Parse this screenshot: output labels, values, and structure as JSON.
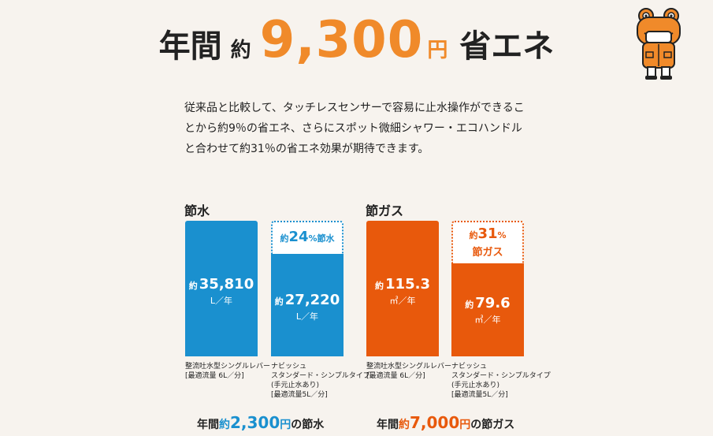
{
  "headline": {
    "prefix": "年間",
    "approx": "約",
    "amount": "9,300",
    "yen": "円",
    "suffix": "省エネ"
  },
  "description": "従来品と比較して、タッチレスセンサーで容易に止水操作ができることから約9％の省エネ、さらにスポット微細シャワー・エコハンドルと合わせて約31％の省エネ効果が期待できます。",
  "water": {
    "title": "節水",
    "before": {
      "approx": "約",
      "value": "35,810",
      "unit": "L／年",
      "caption": [
        "整流吐水型シングルレバー",
        "[最適流量 6L／分]"
      ]
    },
    "after": {
      "approx": "約",
      "value": "27,220",
      "unit": "L／年",
      "caption": [
        "ナビッシュ",
        "スタンダード・シンプルタイプ",
        "(手元止水あり)",
        "[最適流量5L／分]"
      ]
    },
    "badge": {
      "approx": "約",
      "pct": "24",
      "pct_sign": "%",
      "label": "節水"
    },
    "summary": {
      "prefix": "年間",
      "approx": "約",
      "amount": "2,300",
      "yen": "円",
      "suffix": "の節水"
    }
  },
  "gas": {
    "title": "節ガス",
    "before": {
      "approx": "約",
      "value": "115.3",
      "unit": "㎥／年",
      "caption": [
        "整流吐水型シングルレバー",
        "[最適流量 6L／分]"
      ]
    },
    "after": {
      "approx": "約",
      "value": "79.6",
      "unit": "㎥／年",
      "caption": [
        "ナビッシュ",
        "スタンダード・シンプルタイプ",
        "(手元止水あり)",
        "[最適流量5L／分]"
      ]
    },
    "badge": {
      "approx": "約",
      "pct": "31",
      "pct_sign": "%",
      "label": "節ガス"
    },
    "summary": {
      "prefix": "年間",
      "approx": "約",
      "amount": "7,000",
      "yen": "円",
      "suffix": "の節ガス"
    }
  },
  "colors": {
    "blue": "#1a90cf",
    "orange": "#e8590c",
    "accent": "#f08a2a",
    "background": "#f7f3ee"
  },
  "icons": {
    "mascot": "frog-mascot-icon"
  }
}
